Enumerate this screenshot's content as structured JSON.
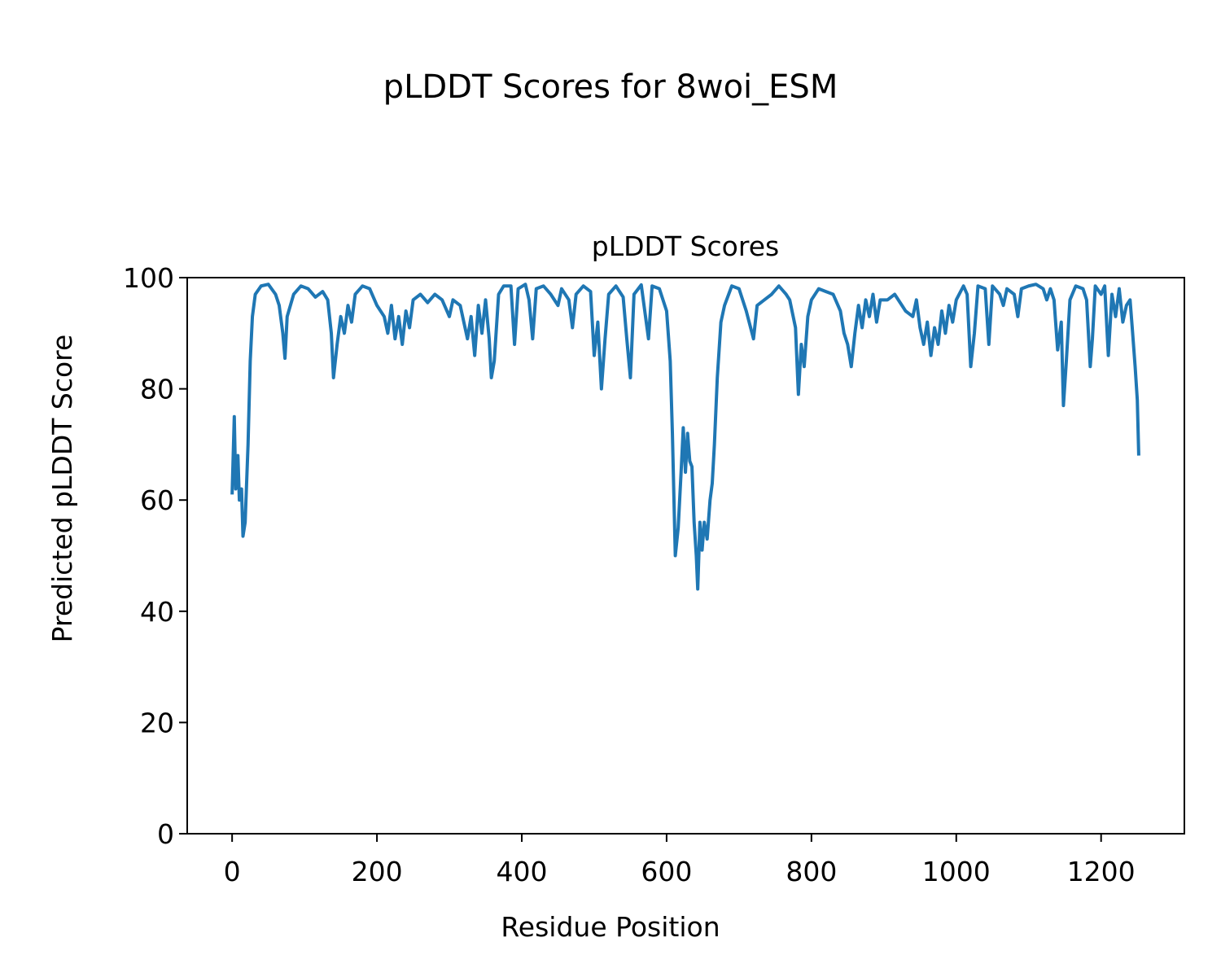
{
  "chart_data": {
    "type": "line",
    "title": "pLDDT Scores for 8woi_ESM",
    "subtitle": "pLDDT Scores",
    "x_label": "Residue Position",
    "y_label": "Predicted pLDDT Score",
    "xlim": [
      -62,
      1315
    ],
    "ylim": [
      0,
      100
    ],
    "xticks": [
      0,
      200,
      400,
      600,
      800,
      1000,
      1200
    ],
    "yticks": [
      0,
      20,
      40,
      60,
      80,
      100
    ],
    "grid": false,
    "series": [
      {
        "name": "pLDDT",
        "color": "#1f77b4",
        "x": [
          0,
          3,
          5,
          8,
          10,
          13,
          15,
          18,
          22,
          25,
          28,
          32,
          40,
          50,
          60,
          65,
          70,
          73,
          76,
          85,
          95,
          105,
          115,
          125,
          132,
          137,
          140,
          145,
          150,
          155,
          160,
          165,
          170,
          180,
          190,
          200,
          210,
          215,
          220,
          225,
          230,
          235,
          240,
          245,
          250,
          260,
          270,
          280,
          290,
          300,
          305,
          315,
          320,
          325,
          330,
          335,
          340,
          345,
          350,
          355,
          358,
          362,
          368,
          375,
          385,
          390,
          395,
          405,
          410,
          415,
          420,
          430,
          440,
          450,
          455,
          465,
          470,
          475,
          485,
          495,
          500,
          505,
          510,
          515,
          520,
          530,
          540,
          545,
          550,
          555,
          565,
          575,
          580,
          590,
          600,
          605,
          608,
          612,
          616,
          620,
          623,
          626,
          629,
          632,
          635,
          638,
          641,
          643,
          646,
          649,
          652,
          656,
          660,
          663,
          666,
          670,
          675,
          680,
          690,
          700,
          710,
          720,
          725,
          735,
          745,
          755,
          765,
          770,
          778,
          782,
          786,
          790,
          795,
          800,
          810,
          820,
          830,
          840,
          845,
          850,
          855,
          860,
          865,
          870,
          875,
          880,
          885,
          890,
          895,
          905,
          915,
          925,
          930,
          940,
          945,
          950,
          955,
          960,
          965,
          970,
          975,
          980,
          985,
          990,
          995,
          1000,
          1010,
          1015,
          1020,
          1025,
          1030,
          1040,
          1045,
          1050,
          1060,
          1065,
          1070,
          1080,
          1085,
          1090,
          1100,
          1110,
          1120,
          1125,
          1130,
          1135,
          1140,
          1145,
          1148,
          1152,
          1157,
          1165,
          1175,
          1180,
          1185,
          1188,
          1192,
          1200,
          1205,
          1210,
          1215,
          1220,
          1225,
          1230,
          1235,
          1240,
          1243,
          1247,
          1250,
          1252
        ],
        "values": [
          61,
          75,
          62,
          68,
          60,
          62,
          53.5,
          56,
          70,
          85,
          93,
          97,
          98.5,
          98.8,
          97,
          95,
          90,
          85.5,
          93,
          97,
          98.5,
          98,
          96.5,
          97.5,
          96,
          90,
          82,
          88,
          93,
          90,
          95,
          92,
          97,
          98.5,
          98,
          95,
          93,
          90,
          95,
          89,
          93,
          88,
          94,
          91,
          96,
          97,
          95.5,
          97,
          96,
          93,
          96,
          95,
          92,
          89,
          93,
          86,
          95,
          90,
          96,
          89,
          82,
          85,
          97,
          98.5,
          98.5,
          88,
          98,
          98.8,
          96,
          89,
          98,
          98.5,
          97,
          95,
          98,
          96,
          91,
          97,
          98.5,
          97.5,
          86,
          92,
          80,
          89,
          97,
          98.5,
          96.5,
          89,
          82,
          97,
          98.7,
          89,
          98.5,
          98,
          94,
          85,
          72,
          50,
          55,
          65,
          73,
          65,
          72,
          67,
          66,
          56,
          50,
          44,
          56,
          51,
          56,
          53,
          60,
          63,
          70,
          82,
          92,
          95,
          98.5,
          98,
          94,
          89,
          95,
          96,
          97,
          98.5,
          97,
          96,
          91,
          79,
          88,
          84,
          93,
          96,
          98,
          97.5,
          97,
          94,
          90,
          88,
          84,
          90,
          95,
          91,
          96,
          93,
          97,
          92,
          96,
          96,
          97,
          95,
          94,
          93,
          96,
          91,
          88,
          92,
          86,
          91,
          88,
          94,
          90,
          95,
          92,
          96,
          98.5,
          97,
          84,
          90,
          98.5,
          98,
          88,
          98.5,
          97,
          95,
          98,
          97,
          93,
          98,
          98.5,
          98.8,
          98,
          96,
          98,
          96,
          87,
          92,
          77,
          85,
          96,
          98.5,
          98,
          96,
          84,
          89,
          98.5,
          97,
          98.5,
          86,
          97,
          93,
          98,
          92,
          95,
          96,
          91,
          84,
          78,
          68
        ]
      }
    ]
  }
}
